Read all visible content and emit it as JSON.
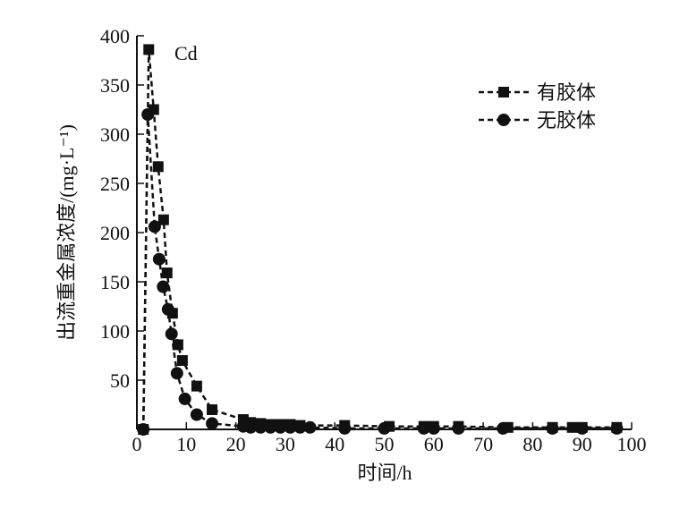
{
  "chart_data": {
    "type": "line",
    "annotation": "Cd",
    "xlabel": "时间/h",
    "ylabel": "出流重金属浓度/(mg·L⁻¹)",
    "xlim": [
      0,
      100
    ],
    "ylim": [
      0,
      400
    ],
    "xticks": [
      0,
      10,
      20,
      30,
      40,
      50,
      60,
      70,
      80,
      90,
      100
    ],
    "yticks": [
      50,
      100,
      150,
      200,
      250,
      300,
      350,
      400
    ],
    "grid": false,
    "legend_position": "top-right",
    "series": [
      {
        "name": "有胶体",
        "marker": "square",
        "x": [
          1.3,
          2.4,
          3.4,
          4.3,
          5.4,
          6.1,
          7.2,
          8.3,
          9.2,
          12.1,
          15.2,
          21.5,
          23,
          25,
          27,
          29,
          31,
          33,
          42,
          51,
          58,
          60,
          65,
          75,
          84,
          88,
          90,
          97
        ],
        "y": [
          0,
          386,
          325,
          267,
          213,
          159,
          118,
          86,
          70,
          44,
          20,
          10,
          7,
          6,
          5,
          5,
          5,
          4,
          4,
          3,
          3,
          3,
          3,
          2,
          2,
          2,
          2,
          2
        ]
      },
      {
        "name": "无胶体",
        "marker": "circle",
        "x": [
          1.3,
          2.2,
          3.6,
          4.5,
          5.3,
          6.3,
          7.0,
          8.1,
          9.7,
          12.1,
          15.2,
          21.5,
          23,
          25,
          27,
          29,
          31,
          33,
          35,
          42,
          50,
          58,
          60,
          65,
          74,
          84,
          90,
          97
        ],
        "y": [
          0,
          320,
          206,
          173,
          145,
          122,
          97,
          57,
          31,
          15,
          6,
          3,
          2,
          2,
          2,
          2,
          2,
          2,
          2,
          1,
          1,
          1,
          1,
          1,
          1,
          1,
          1,
          1
        ]
      }
    ]
  }
}
